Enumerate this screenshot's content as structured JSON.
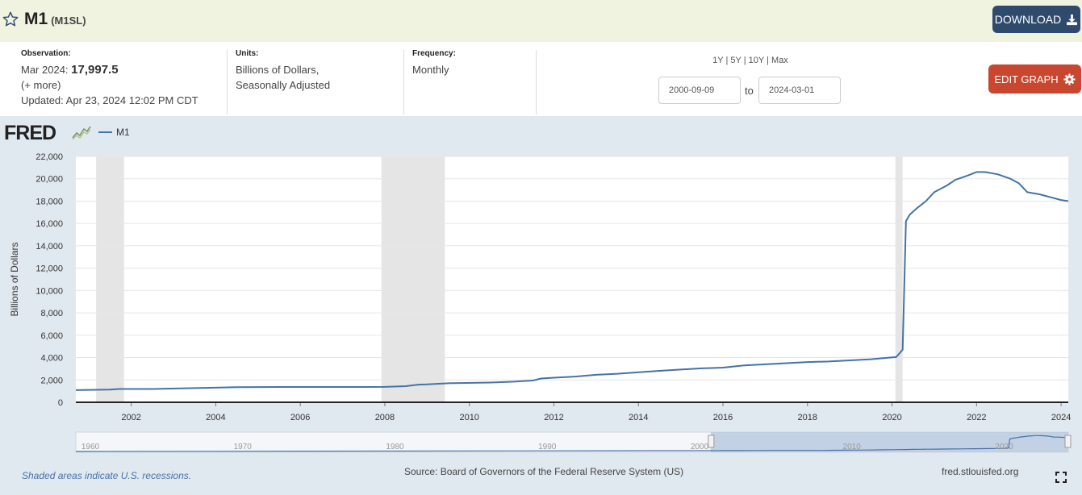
{
  "header": {
    "title": "M1",
    "series_id": "(M1SL)",
    "download_label": "DOWNLOAD"
  },
  "observation": {
    "label": "Observation:",
    "period": "Mar 2024:",
    "value": "17,997.5",
    "more": "(+ more)",
    "updated_label": "Updated:",
    "updated": "Apr 23, 2024 12:02 PM CDT"
  },
  "units": {
    "label": "Units:",
    "line1": "Billions of Dollars,",
    "line2": "Seasonally Adjusted"
  },
  "frequency": {
    "label": "Frequency:",
    "value": "Monthly"
  },
  "range_buttons": [
    "1Y",
    "5Y",
    "10Y",
    "Max"
  ],
  "date_range": {
    "start": "2000-09-09",
    "to": "to",
    "end": "2024-03-01"
  },
  "edit_label": "EDIT GRAPH",
  "logo": "FRED",
  "footer": {
    "recession_note": "Shaded areas indicate U.S. recessions.",
    "source": "Source: Board of Governors of the Federal Reserve System (US)",
    "site": "fred.stlouisfed.org"
  },
  "colors": {
    "series": "#4572a7",
    "recession": "#e5e5e5",
    "download": "#2e4b6e",
    "edit": "#c9472f"
  },
  "navigator": {
    "labels": [
      "1960",
      "1970",
      "1980",
      "1990",
      "2000",
      "2010",
      "2020"
    ]
  },
  "chart_data": {
    "type": "line",
    "ylabel": "Billions of Dollars",
    "ylim": [
      0,
      22000
    ],
    "xlim": [
      2000.69,
      2024.17
    ],
    "y_ticks": [
      "0",
      "2,000",
      "4,000",
      "6,000",
      "8,000",
      "10,000",
      "12,000",
      "14,000",
      "16,000",
      "18,000",
      "20,000",
      "22,000"
    ],
    "x_ticks": [
      "2002",
      "2004",
      "2006",
      "2008",
      "2010",
      "2012",
      "2014",
      "2016",
      "2018",
      "2020",
      "2022",
      "2024"
    ],
    "recessions": [
      [
        2001.17,
        2001.83
      ],
      [
        2007.92,
        2009.42
      ],
      [
        2020.08,
        2020.25
      ]
    ],
    "grid": true,
    "legend": "top-left",
    "series": [
      {
        "name": "M1",
        "x": [
          2000.69,
          2001.5,
          2001.7,
          2002.5,
          2003.5,
          2004.5,
          2005.5,
          2006.5,
          2007.5,
          2008.0,
          2008.5,
          2008.8,
          2009.0,
          2009.5,
          2010.5,
          2011.0,
          2011.5,
          2011.7,
          2012.0,
          2012.5,
          2013.0,
          2013.5,
          2014.0,
          2014.5,
          2015.0,
          2015.5,
          2016.0,
          2016.5,
          2017.0,
          2017.5,
          2018.0,
          2018.5,
          2019.0,
          2019.5,
          2019.9,
          2020.1,
          2020.25,
          2020.33,
          2020.42,
          2020.6,
          2020.8,
          2021.0,
          2021.3,
          2021.5,
          2021.8,
          2022.0,
          2022.2,
          2022.5,
          2022.8,
          2023.0,
          2023.2,
          2023.5,
          2023.8,
          2024.0,
          2024.17
        ],
        "values": [
          1090,
          1130,
          1190,
          1190,
          1270,
          1350,
          1370,
          1370,
          1370,
          1380,
          1440,
          1580,
          1600,
          1700,
          1770,
          1840,
          1950,
          2130,
          2200,
          2300,
          2460,
          2550,
          2690,
          2810,
          2930,
          3040,
          3100,
          3300,
          3400,
          3500,
          3600,
          3650,
          3750,
          3850,
          3990,
          4050,
          4700,
          16200,
          16800,
          17400,
          18000,
          18800,
          19400,
          19900,
          20300,
          20600,
          20600,
          20400,
          20000,
          19600,
          18800,
          18600,
          18300,
          18100,
          17997.5
        ]
      }
    ]
  }
}
